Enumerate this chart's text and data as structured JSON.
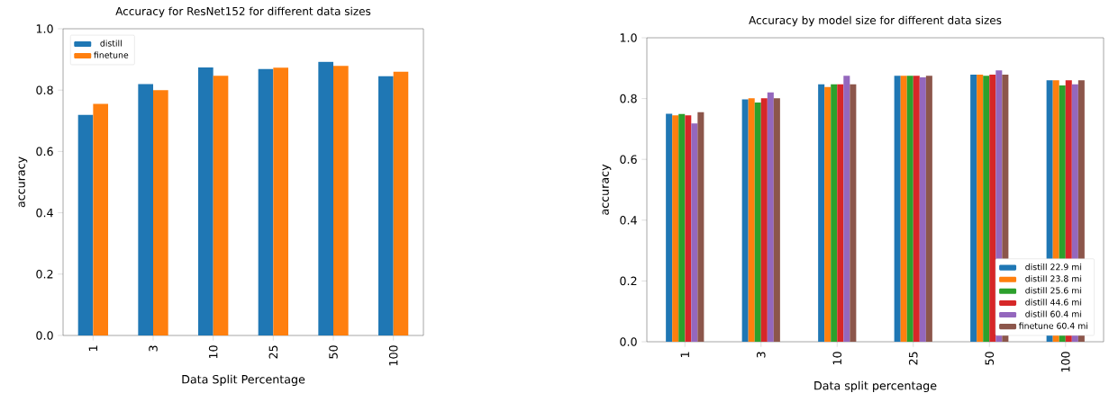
{
  "chart_data": [
    {
      "type": "bar",
      "title": "Accuracy for ResNet152 for different data sizes",
      "xlabel": "Data Split Percentage",
      "ylabel": "accuracy",
      "categories": [
        "1",
        "3",
        "10",
        "25",
        "50",
        "100"
      ],
      "series": [
        {
          "name": "distill",
          "color": "#1f77b4",
          "values": [
            0.719,
            0.82,
            0.874,
            0.869,
            0.892,
            0.845
          ]
        },
        {
          "name": "finetune",
          "color": "#ff7f0e",
          "values": [
            0.755,
            0.8,
            0.847,
            0.873,
            0.879,
            0.86
          ]
        }
      ],
      "ylim": [
        0,
        1
      ],
      "yticks": [
        {
          "value": 0,
          "label": "0.0"
        },
        {
          "value": 0.2,
          "label": "0.2"
        },
        {
          "value": 0.4,
          "label": "0.4"
        },
        {
          "value": 0.6,
          "label": "0.6"
        },
        {
          "value": 0.8,
          "label": "0.8"
        },
        {
          "value": 1,
          "label": "1.0"
        }
      ],
      "legend": "top left"
    },
    {
      "type": "bar",
      "title": "Accuracy by model size for different data sizes",
      "xlabel": "Data split percentage",
      "ylabel": "accuracy",
      "categories": [
        "1",
        "3",
        "10",
        "25",
        "50",
        "100"
      ],
      "series": [
        {
          "name": "distill 22.9 mi",
          "color": "#1f77b4",
          "values": [
            0.75,
            0.797,
            0.847,
            0.875,
            0.879,
            0.86
          ]
        },
        {
          "name": "distill 23.8 mi",
          "color": "#ff7f0e",
          "values": [
            0.745,
            0.801,
            0.838,
            0.875,
            0.879,
            0.86
          ]
        },
        {
          "name": "distill 25.6 mi",
          "color": "#2ca02c",
          "values": [
            0.749,
            0.787,
            0.847,
            0.875,
            0.875,
            0.843
          ]
        },
        {
          "name": "distill 44.6 mi",
          "color": "#d62728",
          "values": [
            0.745,
            0.801,
            0.847,
            0.875,
            0.879,
            0.86
          ]
        },
        {
          "name": "distill 60.4 mi",
          "color": "#9467bd",
          "values": [
            0.718,
            0.82,
            0.875,
            0.87,
            0.893,
            0.847
          ]
        },
        {
          "name": "finetune 60.4 mi",
          "color": "#8c564b",
          "values": [
            0.755,
            0.801,
            0.847,
            0.875,
            0.879,
            0.86
          ]
        }
      ],
      "ylim": [
        0,
        1
      ],
      "yticks": [
        {
          "value": 0,
          "label": "0.0"
        },
        {
          "value": 0.2,
          "label": "0.2"
        },
        {
          "value": 0.4,
          "label": "0.4"
        },
        {
          "value": 0.6,
          "label": "0.6"
        },
        {
          "value": 0.8,
          "label": "0.8"
        },
        {
          "value": 1,
          "label": "1.0"
        }
      ],
      "legend": "bottom right"
    }
  ]
}
